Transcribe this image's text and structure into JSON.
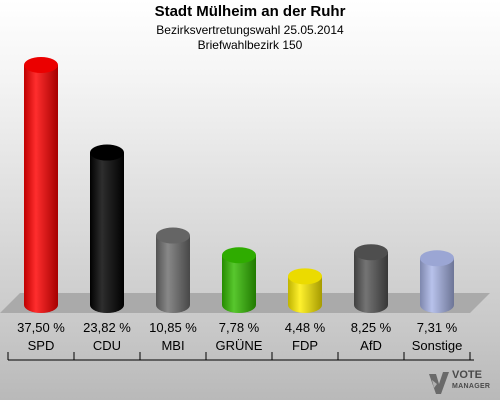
{
  "header": {
    "title": "Stadt Mülheim an der Ruhr",
    "subtitle": "Bezirksvertretungswahl 25.05.2014",
    "district": "Briefwahlbezirk 150"
  },
  "logo": {
    "line1": "VOTE",
    "line2": "MANAGER"
  },
  "chart_data": {
    "type": "bar",
    "title": "Stadt Mülheim an der Ruhr",
    "subtitle": "Bezirksvertretungswahl 25.05.2014 / Briefwahlbezirk 150",
    "categories": [
      "SPD",
      "CDU",
      "MBI",
      "GRÜNE",
      "FDP",
      "AfD",
      "Sonstige"
    ],
    "values": [
      37.5,
      23.82,
      10.85,
      7.78,
      4.48,
      8.25,
      7.31
    ],
    "value_labels": [
      "37,50 %",
      "23,82 %",
      "10,85 %",
      "7,78 %",
      "4,48 %",
      "8,25 %",
      "7,31 %"
    ],
    "colors": [
      "#ff0000",
      "#000000",
      "#6e6e6e",
      "#33bb00",
      "#ffee00",
      "#555555",
      "#a8b4e6"
    ],
    "unit": "%",
    "grid": false,
    "legend": "none"
  }
}
